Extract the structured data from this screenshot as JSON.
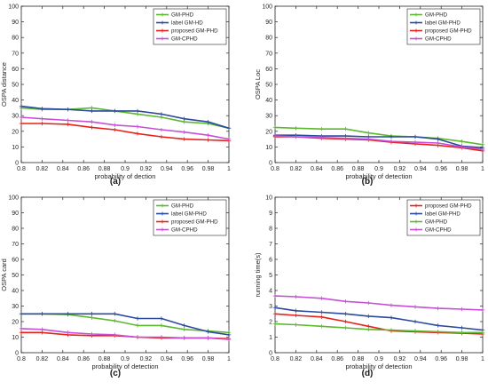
{
  "chart_data": [
    {
      "type": "line",
      "panel_label": "(a)",
      "xlabel": "probability of dection",
      "ylabel": "OSPA distance",
      "xlim": [
        0.8,
        1
      ],
      "ylim": [
        0,
        100
      ],
      "xticks": [
        "0.8",
        "0.82",
        "0.84",
        "0.86",
        "0.88",
        "0.9",
        "0.92",
        "0.94",
        "0.96",
        "0.98",
        "1"
      ],
      "yticks": [
        "0",
        "10",
        "20",
        "30",
        "40",
        "50",
        "60",
        "70",
        "80",
        "90",
        "100"
      ],
      "legend_position": "top-right",
      "x": [
        0.8,
        0.82,
        0.845,
        0.868,
        0.89,
        0.912,
        0.935,
        0.957,
        0.98,
        1.0
      ],
      "series": [
        {
          "name": "GM-PHD",
          "color": "#5cb82e",
          "values": [
            35,
            34,
            34,
            35,
            33,
            31,
            29,
            26,
            25,
            22
          ]
        },
        {
          "name": "label GM-HD",
          "color": "#2a4a9e",
          "values": [
            36,
            34.5,
            34,
            33,
            33,
            33,
            31,
            28,
            26,
            22
          ]
        },
        {
          "name": "proposed GM-PHD",
          "color": "#e8201a",
          "values": [
            25,
            25,
            24.5,
            22.5,
            21,
            18.5,
            16.5,
            15,
            14.5,
            14
          ]
        },
        {
          "name": "GM-CPHD",
          "color": "#c64fd6",
          "values": [
            29,
            28,
            27,
            26,
            24,
            23,
            21,
            19.5,
            17.5,
            15
          ]
        }
      ]
    },
    {
      "type": "line",
      "panel_label": "(b)",
      "xlabel": "probability of detection",
      "ylabel": "OSPA Loc",
      "xlim": [
        0.8,
        1
      ],
      "ylim": [
        0,
        100
      ],
      "xticks": [
        "0.8",
        "0.82",
        "0.84",
        "0.86",
        "0.88",
        "0.9",
        "0.92",
        "0.94",
        "0.96",
        "0.98",
        "1"
      ],
      "yticks": [
        "0",
        "10",
        "20",
        "30",
        "40",
        "50",
        "60",
        "70",
        "80",
        "90",
        "100"
      ],
      "legend_position": "top-right",
      "x": [
        0.8,
        0.82,
        0.845,
        0.868,
        0.89,
        0.912,
        0.935,
        0.957,
        0.98,
        1.0
      ],
      "series": [
        {
          "name": "GM-PHD",
          "color": "#5cb82e",
          "values": [
            22.5,
            22,
            21.5,
            21.5,
            19,
            17,
            16.5,
            15.5,
            13.5,
            11.5
          ]
        },
        {
          "name": "label GM-PHD",
          "color": "#2a4a9e",
          "values": [
            17.5,
            17.5,
            17,
            17,
            16.5,
            16.5,
            16.5,
            15,
            10.5,
            9.5
          ]
        },
        {
          "name": "proposed GM-PHD",
          "color": "#e8201a",
          "values": [
            16.5,
            16.5,
            15.5,
            15,
            14.5,
            13,
            12,
            11,
            9.5,
            7.5
          ]
        },
        {
          "name": "GM-CPHD",
          "color": "#c64fd6",
          "values": [
            17,
            16.5,
            16,
            15.5,
            15,
            13.5,
            13,
            12.5,
            10,
            8.5
          ]
        }
      ]
    },
    {
      "type": "line",
      "panel_label": "(c)",
      "xlabel": "probability of detection",
      "ylabel": "OSPA card",
      "xlim": [
        0.8,
        1
      ],
      "ylim": [
        0,
        100
      ],
      "xticks": [
        "0.8",
        "0.82",
        "0.84",
        "0.86",
        "0.88",
        "0.9",
        "0.92",
        "0.94",
        "0.96",
        "0.98",
        "1"
      ],
      "yticks": [
        "0",
        "10",
        "20",
        "30",
        "40",
        "50",
        "60",
        "70",
        "80",
        "90",
        "100"
      ],
      "legend_position": "top-right",
      "x": [
        0.8,
        0.82,
        0.845,
        0.868,
        0.89,
        0.912,
        0.935,
        0.957,
        0.98,
        1.0
      ],
      "series": [
        {
          "name": "GM-PHD",
          "color": "#5cb82e",
          "values": [
            25,
            25,
            24.5,
            22.5,
            20.5,
            17.5,
            17.5,
            15,
            14,
            13
          ]
        },
        {
          "name": "label GM-PHD",
          "color": "#2a4a9e",
          "values": [
            25,
            25,
            25,
            25,
            25,
            22,
            22,
            17.5,
            13.5,
            11.5
          ]
        },
        {
          "name": "proposed GM-PHD",
          "color": "#e8201a",
          "values": [
            13,
            13,
            11.5,
            11,
            11,
            10,
            9.5,
            9.5,
            9.5,
            9
          ]
        },
        {
          "name": "GM-CPHD",
          "color": "#c64fd6",
          "values": [
            15.5,
            15,
            13,
            12,
            11.5,
            10,
            10,
            9.5,
            9.5,
            8.5
          ]
        }
      ]
    },
    {
      "type": "line",
      "panel_label": "(d)",
      "xlabel": "probability of detection",
      "ylabel": "running time(s)",
      "xlim": [
        0.8,
        1
      ],
      "ylim": [
        0,
        10
      ],
      "xticks": [
        "0.8",
        "0.82",
        "0.84",
        "0.86",
        "0.88",
        "0.9",
        "0.92",
        "0.94",
        "0.96",
        "0.98",
        "1"
      ],
      "yticks": [
        "0",
        "1",
        "2",
        "3",
        "4",
        "5",
        "6",
        "7",
        "8",
        "9",
        "10"
      ],
      "legend_position": "top-right",
      "x": [
        0.8,
        0.82,
        0.845,
        0.868,
        0.89,
        0.912,
        0.935,
        0.957,
        0.98,
        1.0
      ],
      "series": [
        {
          "name": "proposed GM-PHD",
          "color": "#e8201a",
          "values": [
            2.5,
            2.4,
            2.3,
            2.0,
            1.7,
            1.4,
            1.35,
            1.3,
            1.25,
            1.2
          ]
        },
        {
          "name": "label GM-PHD",
          "color": "#2a4a9e",
          "values": [
            2.9,
            2.7,
            2.6,
            2.5,
            2.35,
            2.25,
            2.0,
            1.75,
            1.6,
            1.45
          ]
        },
        {
          "name": "GM-PHD",
          "color": "#5cb82e",
          "values": [
            1.85,
            1.8,
            1.7,
            1.6,
            1.5,
            1.45,
            1.4,
            1.35,
            1.3,
            1.3
          ]
        },
        {
          "name": "GM-CPHD",
          "color": "#c64fd6",
          "values": [
            3.65,
            3.6,
            3.5,
            3.3,
            3.2,
            3.05,
            2.95,
            2.85,
            2.8,
            2.75
          ]
        }
      ]
    }
  ]
}
